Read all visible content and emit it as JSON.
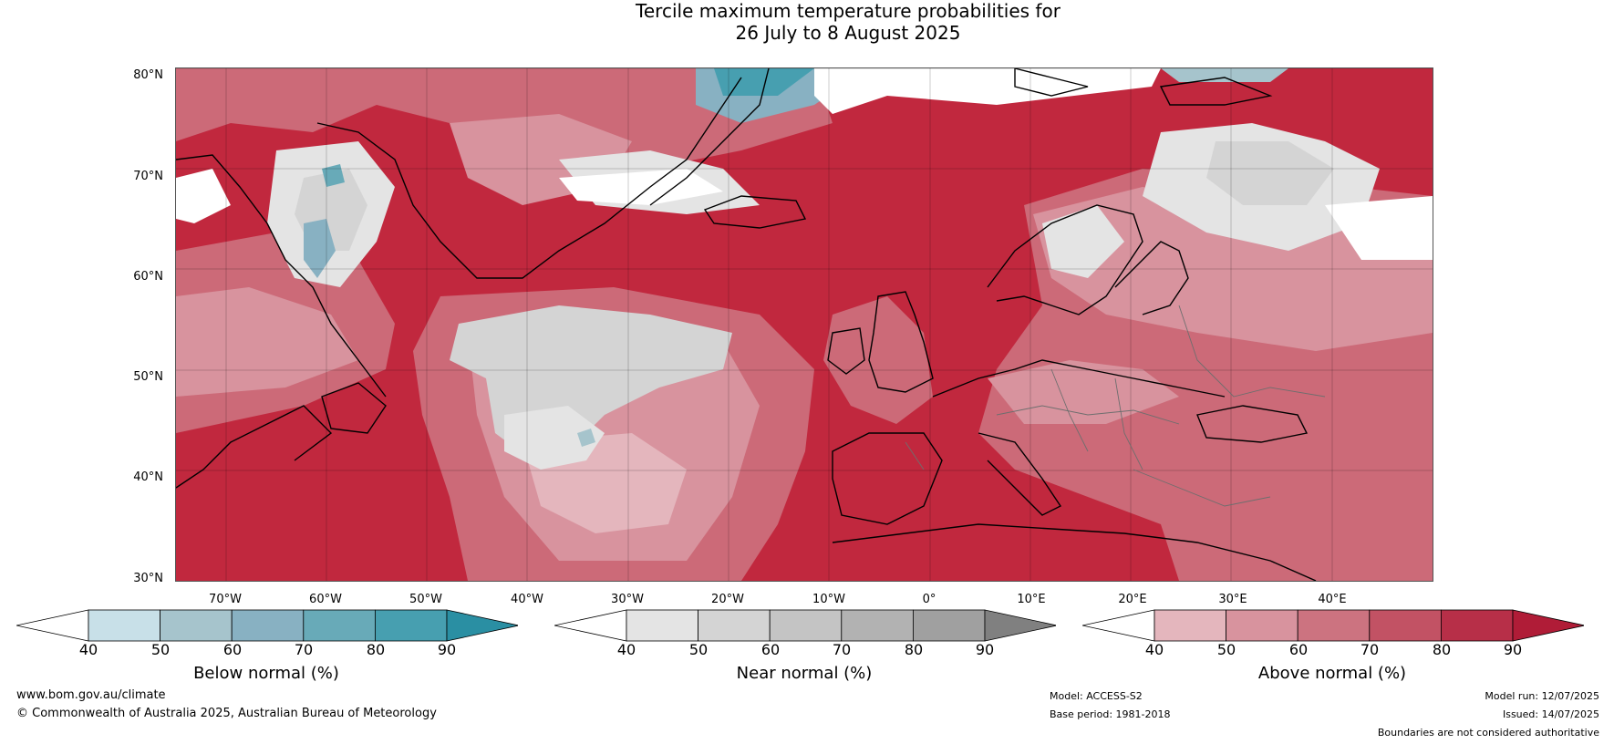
{
  "title_line1": "Tercile maximum temperature probabilities for",
  "title_line2": "26 July to 8 August 2025",
  "lat_labels": [
    "80°N",
    "70°N",
    "60°N",
    "50°N",
    "40°N",
    "30°N"
  ],
  "lon_labels": [
    "70°W",
    "60°W",
    "50°W",
    "40°W",
    "30°W",
    "20°W",
    "10°W",
    "0°",
    "10°E",
    "20°E",
    "30°E",
    "40°E"
  ],
  "colorbars": [
    {
      "label": "Below normal (%)",
      "ticks": [
        "40",
        "50",
        "60",
        "70",
        "80",
        "90"
      ],
      "colors": [
        "#ffffff",
        "#c8e0e8",
        "#a6c4cc",
        "#88b1c2",
        "#68aab8",
        "#479fb0",
        "#2a8fa3"
      ]
    },
    {
      "label": "Near normal (%)",
      "ticks": [
        "40",
        "50",
        "60",
        "70",
        "80",
        "90"
      ],
      "colors": [
        "#ffffff",
        "#e4e4e4",
        "#d4d4d4",
        "#c4c4c4",
        "#b2b2b2",
        "#a0a0a0",
        "#808080"
      ]
    },
    {
      "label": "Above normal (%)",
      "ticks": [
        "40",
        "50",
        "60",
        "70",
        "80",
        "90"
      ],
      "colors": [
        "#ffffff",
        "#e4b6bd",
        "#d8939e",
        "#cc7380",
        "#c25264",
        "#b72f48",
        "#b01c37"
      ]
    }
  ],
  "footer": {
    "url": "www.bom.gov.au/climate",
    "copyright": "© Commonwealth of Australia 2025, Australian Bureau of Meteorology",
    "model": "Model: ACCESS-S2",
    "base_period": "Base period: 1981-2018",
    "model_run": "Model run: 12/07/2025",
    "issued": "Issued: 14/07/2025",
    "disclaimer": "Boundaries are not considered authoritative"
  }
}
